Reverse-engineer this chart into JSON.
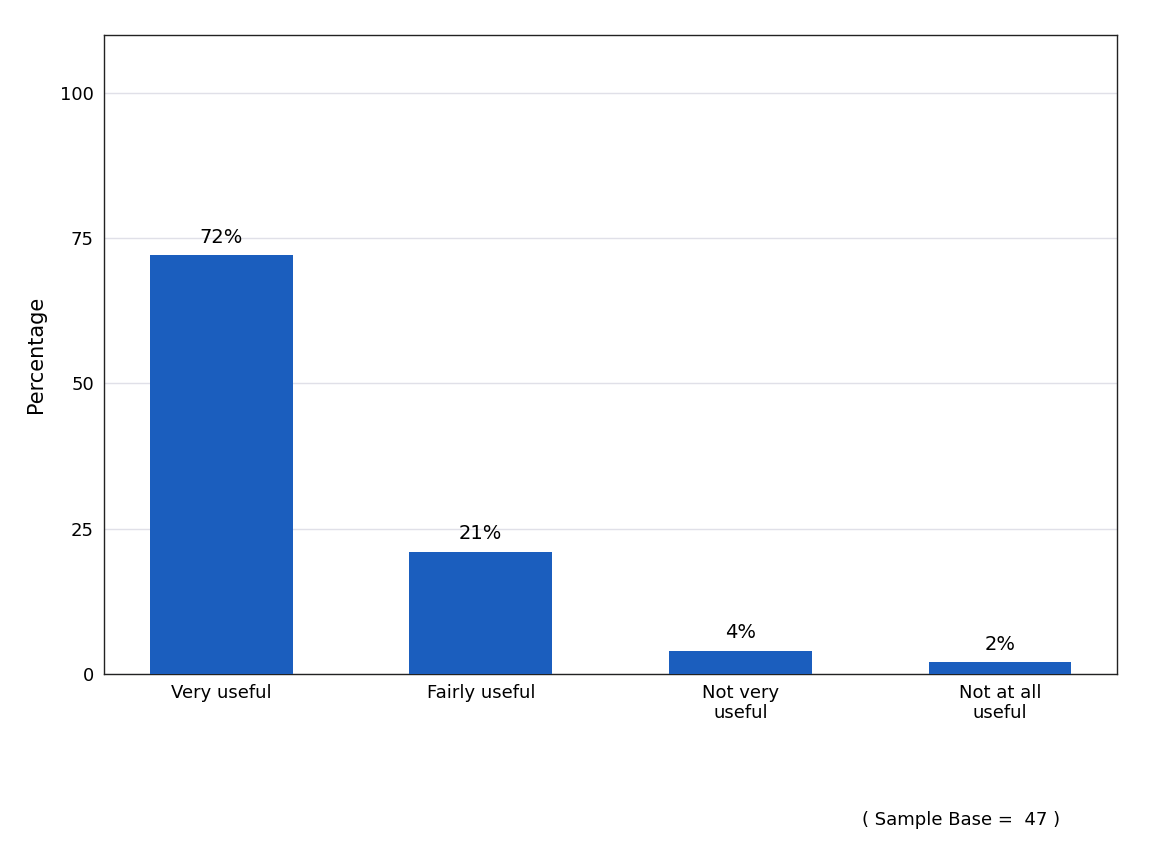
{
  "categories": [
    "Very useful",
    "Fairly useful",
    "Not very\nuseful",
    "Not at all\nuseful"
  ],
  "values": [
    72,
    21,
    4,
    2
  ],
  "labels": [
    "72%",
    "21%",
    "4%",
    "2%"
  ],
  "bar_color": "#1B5EBE",
  "ylabel": "Percentage",
  "ylim": [
    0,
    110
  ],
  "yticks": [
    0,
    25,
    50,
    75,
    100
  ],
  "sample_base_text": "( Sample Base =  47 )",
  "background_color": "#ffffff",
  "plot_bg_color": "#ffffff",
  "grid_color": "#e0e0e8",
  "label_fontsize": 14,
  "tick_fontsize": 13,
  "ylabel_fontsize": 15,
  "sample_fontsize": 13
}
